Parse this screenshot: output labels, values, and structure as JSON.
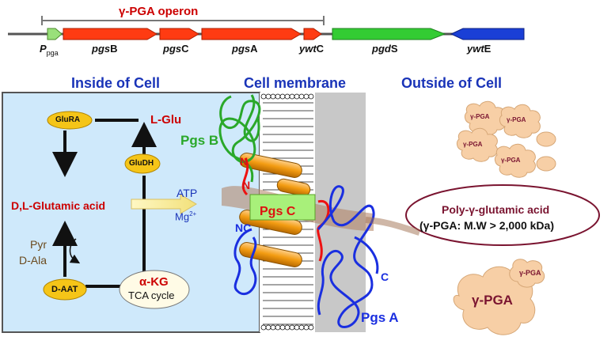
{
  "operon": {
    "title": "γ-PGA operon",
    "promoter_main": "P",
    "promoter_sub": "pga",
    "genes": [
      {
        "prefix": "pgs",
        "suffix": "B"
      },
      {
        "prefix": "pgs",
        "suffix": "C"
      },
      {
        "prefix": "pgs",
        "suffix": "A"
      },
      {
        "prefix": "ywt",
        "suffix": "C"
      },
      {
        "prefix": "pgd",
        "suffix": "S"
      },
      {
        "prefix": "ywt",
        "suffix": "E"
      }
    ]
  },
  "headings": {
    "inside": "Inside of Cell",
    "membrane": "Cell membrane",
    "outside": "Outside of Cell"
  },
  "inside": {
    "glura": "GluRA",
    "l_glu": "L-Glu",
    "gludh": "GluDH",
    "dl_glu": "D,L-Glutamic acid",
    "atp": "ATP",
    "mg_main": "Mg",
    "mg_sup": "2+",
    "pyr": "Pyr",
    "d_ala": "D-Ala",
    "d_aat": "D-AAT",
    "akg": "α-KG",
    "tca": "TCA cycle"
  },
  "membrane": {
    "pgs_b": "Pgs B",
    "n1": "N",
    "n2": "N",
    "nc": "NC",
    "pgs_c": "Pgs C",
    "c": "C",
    "pgs_a": "Pgs A"
  },
  "outside": {
    "cloud_label": "γ-PGA",
    "big_cloud_label": "γ-PGA",
    "small_big_label": "γ-PGA",
    "poly_line1": "Poly-γ-glutamic acid",
    "poly_line2": "(γ-PGA: M.W  > 2,000 kDa)"
  },
  "colors": {
    "gene_red": "#ff3b12",
    "gene_green": "#33cc33",
    "gene_blue": "#1a3fd6",
    "heading_blue": "#1a34b8",
    "cell_bg": "#cfe9fb",
    "node_yellow": "#f5c518",
    "dark_red": "#cc0000",
    "cloud_fill": "#f7cfa6",
    "membrane_gray": "#c8c8c8",
    "helix_orange": "#f39c12"
  }
}
